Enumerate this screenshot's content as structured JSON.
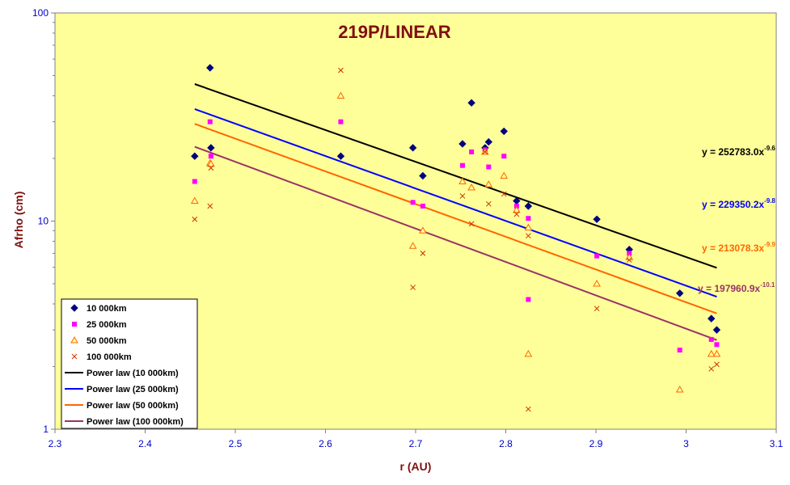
{
  "chart_data": {
    "type": "scatter",
    "title": "219P/LINEAR",
    "xlabel": "r (AU)",
    "ylabel": "Afrho (cm)",
    "xlim": [
      2.3,
      3.1
    ],
    "ylim": [
      1,
      100
    ],
    "y_scale": "log",
    "x_ticks": [
      "2.3",
      "2.4",
      "2.5",
      "2.6",
      "2.7",
      "2.8",
      "2.9",
      "3",
      "3.1"
    ],
    "y_ticks": [
      "1",
      "10",
      "100"
    ],
    "plot_background": "#ffff99",
    "legend_position": "bottom-left",
    "series": [
      {
        "name": "10 000km",
        "marker": "diamond",
        "color": "#000080",
        "x": [
          2.455,
          2.472,
          2.473,
          2.617,
          2.697,
          2.708,
          2.752,
          2.762,
          2.777,
          2.781,
          2.798,
          2.812,
          2.825,
          2.901,
          2.937,
          2.993,
          3.028,
          3.034
        ],
        "y": [
          20.5,
          54.5,
          22.5,
          20.5,
          22.5,
          16.5,
          23.5,
          37,
          22.5,
          24,
          27,
          12.5,
          11.8,
          10.2,
          7.3,
          4.5,
          3.4,
          3.0
        ]
      },
      {
        "name": "25 000km",
        "marker": "square",
        "color": "#ff00ff",
        "x": [
          2.455,
          2.472,
          2.473,
          2.617,
          2.697,
          2.708,
          2.752,
          2.762,
          2.777,
          2.781,
          2.798,
          2.812,
          2.825,
          2.825,
          2.901,
          2.937,
          2.993,
          3.028,
          3.034
        ],
        "y": [
          15.5,
          30,
          20.5,
          30,
          12.3,
          11.8,
          18.5,
          21.5,
          22,
          18.2,
          20.5,
          11.8,
          10.3,
          4.2,
          6.8,
          7.0,
          2.4,
          2.7,
          2.55
        ]
      },
      {
        "name": "50 000km",
        "marker": "triangle",
        "color": "#ff6600",
        "x": [
          2.455,
          2.472,
          2.473,
          2.617,
          2.697,
          2.708,
          2.752,
          2.762,
          2.777,
          2.781,
          2.798,
          2.812,
          2.825,
          2.825,
          2.901,
          2.937,
          2.993,
          3.028,
          3.034
        ],
        "y": [
          12.5,
          19,
          18.8,
          40,
          7.6,
          9.0,
          15.5,
          14.5,
          21.5,
          15,
          16.5,
          11.3,
          9.3,
          2.3,
          5.0,
          6.7,
          1.55,
          2.3,
          2.3
        ]
      },
      {
        "name": "100 000km",
        "marker": "cross",
        "color": "#cc3300",
        "x": [
          2.455,
          2.472,
          2.473,
          2.617,
          2.697,
          2.708,
          2.752,
          2.762,
          2.777,
          2.781,
          2.798,
          2.812,
          2.825,
          2.825,
          2.901,
          2.937,
          3.028,
          3.034
        ],
        "y": [
          10.2,
          11.8,
          18,
          53,
          4.8,
          7.0,
          13.2,
          9.7,
          21.5,
          12.1,
          13.5,
          10.8,
          8.5,
          1.25,
          3.8,
          6.5,
          1.95,
          2.05
        ]
      }
    ],
    "fits": [
      {
        "name": "Power law (10 000km)",
        "color": "#000000",
        "a": 252783.0,
        "b": -9.6,
        "x_range": [
          2.455,
          3.034
        ],
        "equation_prefix": "y = 252783.0x",
        "equation_exp": "-9.6",
        "label_color": "#000000"
      },
      {
        "name": "Power law (25 000km)",
        "color": "#0000ff",
        "a": 229350.2,
        "b": -9.8,
        "x_range": [
          2.455,
          3.034
        ],
        "equation_prefix": "y = 229350.2x",
        "equation_exp": "-9.8",
        "label_color": "#0000ff"
      },
      {
        "name": "Power law (50 000km)",
        "color": "#ff6600",
        "a": 213078.3,
        "b": -9.9,
        "x_range": [
          2.455,
          3.034
        ],
        "equation_prefix": "y = 213078.3x",
        "equation_exp": "-9.9",
        "label_color": "#ff6600"
      },
      {
        "name": "Power law (100 000km)",
        "color": "#993366",
        "a": 197960.9,
        "b": -10.1,
        "x_range": [
          2.455,
          3.034
        ],
        "equation_prefix": "y = 197960.9x",
        "equation_exp": "-10.1",
        "label_color": "#993366"
      }
    ]
  }
}
